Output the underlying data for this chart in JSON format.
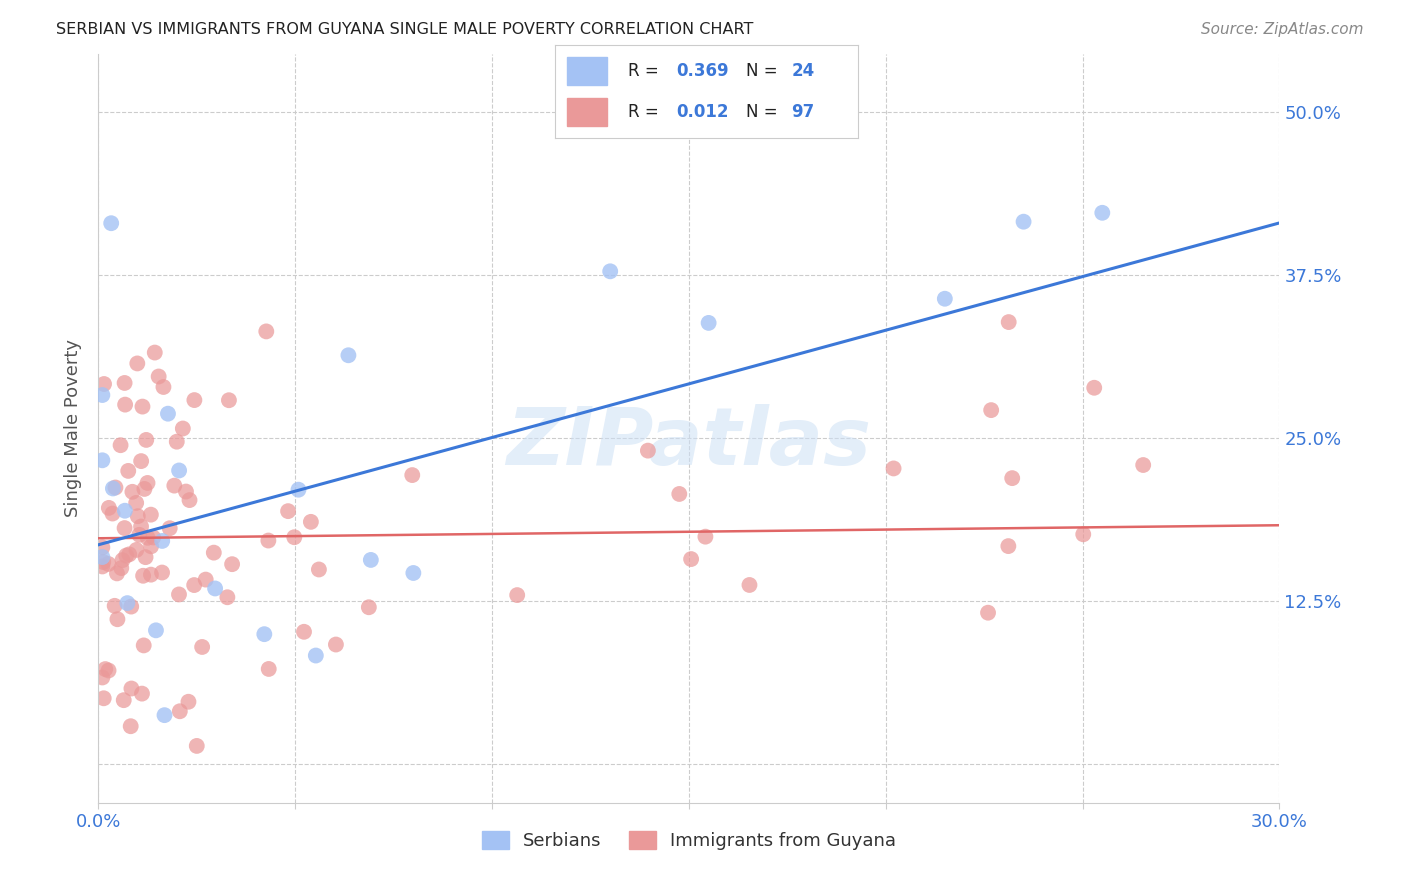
{
  "title": "SERBIAN VS IMMIGRANTS FROM GUYANA SINGLE MALE POVERTY CORRELATION CHART",
  "source": "Source: ZipAtlas.com",
  "ylabel": "Single Male Poverty",
  "x_min": 0.0,
  "x_max": 0.3,
  "y_min": -0.03,
  "y_max": 0.545,
  "x_ticks": [
    0.0,
    0.05,
    0.1,
    0.15,
    0.2,
    0.25,
    0.3
  ],
  "x_tick_labels": [
    "0.0%",
    "",
    "",
    "",
    "",
    "",
    "30.0%"
  ],
  "y_ticks": [
    0.0,
    0.125,
    0.25,
    0.375,
    0.5
  ],
  "y_tick_labels_right": [
    "",
    "12.5%",
    "25.0%",
    "37.5%",
    "50.0%"
  ],
  "serbian_color": "#a4c2f4",
  "guyana_color": "#ea9999",
  "serbian_line_color": "#3c78d8",
  "guyana_line_color": "#e06666",
  "tick_label_color": "#3c78d8",
  "serbian_R": 0.369,
  "guyana_R": 0.012,
  "serbian_N": 24,
  "guyana_N": 97,
  "background_color": "#ffffff",
  "grid_color": "#cccccc",
  "watermark_text": "ZIPatlas",
  "watermark_color": "#cce0f5",
  "watermark_alpha": 0.55,
  "serb_line_y0": 0.168,
  "serb_line_y1": 0.415,
  "guy_line_y0": 0.173,
  "guy_line_y1": 0.183
}
